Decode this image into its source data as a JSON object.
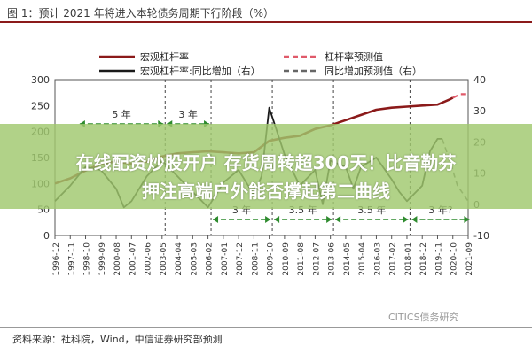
{
  "figure_title": "图 1：预计 2021 年将进入本轮债务周期下行阶段（%）",
  "source_note": "资料来源：社科院，Wind，中信证券研究部预测",
  "banner": {
    "line1": "在线配资炒股开户 存货周转超300天！比音勒芬",
    "line2": "押注高端户外能否撑起第二曲线"
  },
  "watermark": "CITICS债务研究",
  "colors": {
    "leverage": "#8b1a1a",
    "leverage_forecast": "#e05a6a",
    "yoy": "#1a1a1a",
    "yoy_forecast": "#666666",
    "annotation_green": "#2e8b2e",
    "title_rule": "#8b1a1a"
  },
  "chart_data": {
    "type": "line",
    "x_tick_labels": [
      "1996-12",
      "1997-11",
      "1998-10",
      "1999-09",
      "2000-08",
      "2001-07",
      "2002-06",
      "2003-05",
      "2004-04",
      "2005-03",
      "2006-02",
      "2007-01",
      "2007-12",
      "2008-11",
      "2009-10",
      "2010-09",
      "2011-08",
      "2012-07",
      "2013-06",
      "2014-05",
      "2015-04",
      "2016-03",
      "2017-02",
      "2018-01",
      "2018-12",
      "2019-11",
      "2020-10",
      "2021-09"
    ],
    "y_left": {
      "ticks": [
        0,
        50,
        100,
        150,
        200,
        250,
        300
      ],
      "lim": [
        0,
        300
      ]
    },
    "y_right": {
      "ticks": [
        -10,
        0,
        10,
        20,
        30,
        40
      ],
      "lim": [
        -10,
        40
      ]
    },
    "legend": [
      {
        "label": "宏观杠杆率",
        "style": "solid",
        "series": "leverage"
      },
      {
        "label": "杠杆率预测值",
        "style": "dashed",
        "series": "leverage_forecast"
      },
      {
        "label": "宏观杠杆率:同比增加（右）",
        "style": "solid",
        "series": "yoy"
      },
      {
        "label": "同比增加预测值（右）",
        "style": "dashed",
        "series": "yoy_forecast"
      }
    ],
    "series": [
      {
        "name": "宏观杠杆率",
        "axis": "left",
        "points": [
          [
            0,
            100
          ],
          [
            1,
            110
          ],
          [
            2,
            125
          ],
          [
            3,
            138
          ],
          [
            4,
            142
          ],
          [
            5,
            138
          ],
          [
            6,
            142
          ],
          [
            7,
            152
          ],
          [
            8,
            158
          ],
          [
            9,
            160
          ],
          [
            10,
            162
          ],
          [
            11,
            160
          ],
          [
            12,
            158
          ],
          [
            13,
            160
          ],
          [
            14,
            182
          ],
          [
            15,
            188
          ],
          [
            16,
            192
          ],
          [
            17,
            205
          ],
          [
            18,
            212
          ],
          [
            19,
            222
          ],
          [
            20,
            232
          ],
          [
            21,
            242
          ],
          [
            22,
            246
          ],
          [
            23,
            248
          ],
          [
            24,
            250
          ],
          [
            25,
            252
          ],
          [
            25.5,
            258
          ],
          [
            25.8,
            262
          ],
          [
            26,
            265
          ]
        ]
      },
      {
        "name": "杠杆率预测值",
        "axis": "left",
        "points": [
          [
            26,
            265
          ],
          [
            26.5,
            272
          ],
          [
            27,
            272
          ]
        ]
      },
      {
        "name": "宏观杠杆率:同比增加（右）",
        "axis": "right",
        "points": [
          [
            0,
            1
          ],
          [
            1,
            6
          ],
          [
            2,
            12
          ],
          [
            3,
            11
          ],
          [
            4,
            5
          ],
          [
            4.5,
            -1
          ],
          [
            5,
            1
          ],
          [
            6,
            9
          ],
          [
            7,
            14
          ],
          [
            8,
            9
          ],
          [
            9,
            4
          ],
          [
            10,
            -1
          ],
          [
            11,
            7
          ],
          [
            12,
            11
          ],
          [
            13,
            3
          ],
          [
            13.5,
            9
          ],
          [
            14,
            31
          ],
          [
            15,
            16
          ],
          [
            16,
            6
          ],
          [
            17,
            11
          ],
          [
            17.5,
            0
          ],
          [
            18,
            14
          ],
          [
            19,
            12
          ],
          [
            19.5,
            5
          ],
          [
            20,
            12
          ],
          [
            21,
            15
          ],
          [
            22,
            8
          ],
          [
            22.5,
            4
          ],
          [
            23,
            1
          ],
          [
            24,
            6
          ],
          [
            24.5,
            17
          ],
          [
            25,
            21
          ],
          [
            25.3,
            21
          ]
        ]
      },
      {
        "name": "同比增加预测值（右）",
        "axis": "right",
        "points": [
          [
            25.3,
            21
          ],
          [
            25.8,
            14
          ],
          [
            26.3,
            6
          ],
          [
            27,
            1
          ]
        ]
      }
    ],
    "annotations": [
      {
        "label": "5 年",
        "from": 1.5,
        "to": 7.2,
        "pos": "top"
      },
      {
        "label": "3 年",
        "from": 7.2,
        "to": 10.2,
        "pos": "top"
      },
      {
        "label": "3 年",
        "from": 10.2,
        "to": 14.2,
        "pos": "bottom"
      },
      {
        "label": "3.5 年",
        "from": 14.2,
        "to": 18.2,
        "pos": "bottom"
      },
      {
        "label": "3.5 年",
        "from": 18.2,
        "to": 23.2,
        "pos": "bottom"
      },
      {
        "label": "3 年?",
        "from": 23.2,
        "to": 27.2,
        "pos": "bottom"
      }
    ],
    "vertical_dashed_lines": [
      7.2,
      10.2,
      14.2,
      18.2,
      23.2
    ]
  }
}
